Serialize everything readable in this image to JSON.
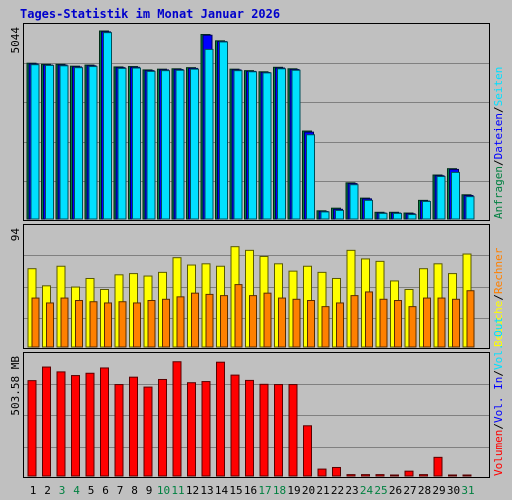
{
  "title": "Tages-Statistik im Monat Januar 2026",
  "chart_data": {
    "type": "bar",
    "title": "Tages-Statistik im Monat Januar 2026",
    "categories": [
      "1",
      "2",
      "3",
      "4",
      "5",
      "6",
      "7",
      "8",
      "9",
      "10",
      "11",
      "12",
      "13",
      "14",
      "15",
      "16",
      "17",
      "18",
      "19",
      "20",
      "21",
      "22",
      "23",
      "24",
      "25",
      "26",
      "27",
      "28",
      "29",
      "30",
      "31"
    ],
    "weekend_days": [
      "3",
      "4",
      "10",
      "11",
      "17",
      "18",
      "24",
      "25",
      "31"
    ],
    "colors": {
      "anfragen": "#008040",
      "dateien": "#0000ff",
      "seiten": "#00e0ff",
      "besuche": "#ffff00",
      "rechner": "#ff8000",
      "volumen": "#ff0000",
      "weekday_tick": "#000000",
      "weekend_tick": "#008040"
    },
    "panels": [
      {
        "id": "requests",
        "ymax_label": "5044",
        "ymax": 5044,
        "right_labels": [
          {
            "text": "Anfragen",
            "color": "#008040"
          },
          {
            "text": "Dateien",
            "color": "#0000ff"
          },
          {
            "text": "Seiten",
            "color": "#00e0ff"
          }
        ],
        "series": [
          {
            "name": "Anfragen",
            "values": [
              4180,
              4150,
              4150,
              4100,
              4130,
              5044,
              4080,
              4090,
              4000,
              4020,
              4030,
              4060,
              4950,
              4780,
              4020,
              3980,
              3950,
              4070,
              4030,
              2360,
              220,
              290,
              970,
              560,
              180,
              180,
              160,
              500,
              1180,
              1350,
              650
            ]
          },
          {
            "name": "Dateien",
            "values": [
              4160,
              4130,
              4130,
              4080,
              4110,
              5020,
              4060,
              4070,
              3980,
              4000,
              4010,
              4040,
              4930,
              4760,
              4000,
              3960,
              3930,
              4050,
              4010,
              2330,
              200,
              260,
              950,
              540,
              160,
              160,
              140,
              480,
              1160,
              1330,
              630
            ]
          },
          {
            "name": "Seiten",
            "values": [
              4140,
              4120,
              4110,
              4060,
              4090,
              5000,
              4040,
              4050,
              3960,
              3980,
              3990,
              4020,
              4550,
              4750,
              3980,
              3950,
              3920,
              4030,
              3990,
              2260,
              190,
              230,
              920,
              500,
              150,
              150,
              120,
              470,
              1140,
              1250,
              600
            ]
          }
        ]
      },
      {
        "id": "visits",
        "ymax_label": "94",
        "ymax": 94,
        "right_labels": [
          {
            "text": "Besuche",
            "color": "#ffff00"
          },
          {
            "text": "Rechner",
            "color": "#ff8000"
          }
        ],
        "series": [
          {
            "name": "Besuche",
            "values": [
              64,
              50,
              66,
              49,
              56,
              47,
              59,
              60,
              58,
              61,
              73,
              67,
              68,
              66,
              82,
              79,
              74,
              68,
              62,
              66,
              61,
              56,
              79,
              72,
              70,
              54,
              47,
              64,
              68,
              60,
              76
            ]
          },
          {
            "name": "Rechner",
            "values": [
              40,
              36,
              40,
              38,
              37,
              36,
              37,
              36,
              38,
              39,
              41,
              44,
              43,
              42,
              51,
              42,
              44,
              40,
              39,
              38,
              33,
              36,
              42,
              45,
              39,
              38,
              33,
              40,
              40,
              39,
              46
            ]
          }
        ]
      },
      {
        "id": "volume",
        "ymax_label": "503.58 MB",
        "ymax": 503.58,
        "right_labels": [
          {
            "text": "Volumen",
            "color": "#ff0000"
          },
          {
            "text": "Vol. In",
            "color": "#0000ff"
          },
          {
            "text": "Vol. Out",
            "color": "#00e0ff"
          }
        ],
        "series": [
          {
            "name": "Volumen",
            "values": [
              414,
              473,
              452,
              436,
              446,
              469,
              397,
              429,
              386,
              419,
              496,
              405,
              410,
              494,
              438,
              415,
              398,
              397,
              397,
              218,
              30,
              37,
              6,
              6,
              6,
              4,
              21,
              6,
              81,
              4,
              4
            ]
          }
        ]
      }
    ]
  }
}
